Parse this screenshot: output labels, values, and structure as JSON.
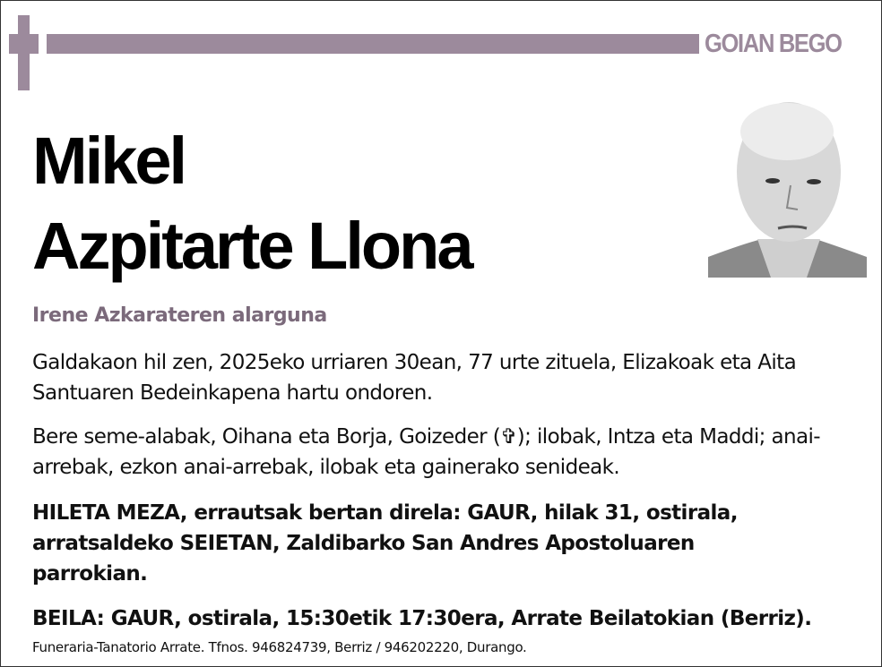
{
  "header": {
    "label": "GOIAN BEGO",
    "accent_color": "#9c8a9c",
    "icon": "cross-icon"
  },
  "deceased": {
    "first_name": "Mikel",
    "surnames": "Azpitarte Llona",
    "relation": "Irene Azkarateren alarguna"
  },
  "paragraphs": {
    "death": "Galdakaon hil zen, 2025eko urriaren 30ean, 77 urte zituela, Elizakoak eta Aita Santuaren Bedeinkapena hartu ondoren.",
    "family_pre": "Bere seme-alabak, Oihana eta Borja, Goizeder (",
    "family_symbol": "✞",
    "family_post": "); ilobak, Intza eta Maddi; anai-arrebak, ezkon anai-arrebak, ilobak eta gainerako senideak.",
    "funeral": "HILETA MEZA, errautsak bertan direla: GAUR, hilak 31, ostirala, arratsaldeko SEIETAN, Zaldibarko San Andres Apostoluaren parrokian.",
    "wake": "BEILA: GAUR, ostirala, 15:30etik 17:30era, Arrate Beilatokian (Berriz)."
  },
  "footer": "Funeraria-Tanatorio Arrate. Tfnos. 946824739, Berriz / 946202220, Durango."
}
